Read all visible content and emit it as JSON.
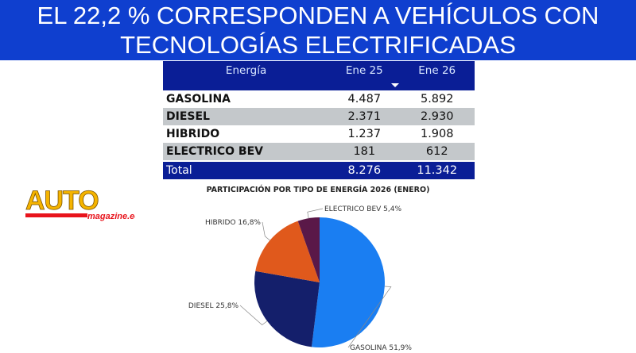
{
  "banner": {
    "line1": "EL 22,2 % CORRESPONDEN A VEHÍCULOS CON",
    "line2": "TECNOLOGÍAS ELECTRIFICADAS"
  },
  "table": {
    "headers": [
      "Energía",
      "Ene 25",
      "Ene 26"
    ],
    "rows": [
      {
        "label": "GASOLINA",
        "ene25": "4.487",
        "ene26": "5.892"
      },
      {
        "label": "DIESEL",
        "ene25": "2.371",
        "ene26": "2.930"
      },
      {
        "label": "HIBRIDO",
        "ene25": "1.237",
        "ene26": "1.908"
      },
      {
        "label": "ELECTRICO BEV",
        "ene25": "181",
        "ene26": "612"
      }
    ],
    "total": {
      "label": "Total",
      "ene25": "8.276",
      "ene26": "11.342"
    }
  },
  "logo": {
    "text": "AUTO",
    "sub": "magazine.ec"
  },
  "chart_data": {
    "type": "pie",
    "title": "PARTICIPACIÓN POR TIPO DE ENERGÍA 2026 (ENERO)",
    "categories": [
      "GASOLINA",
      "DIESEL",
      "HIBRIDO",
      "ELECTRICO BEV"
    ],
    "values": [
      51.9,
      25.8,
      16.8,
      5.4
    ],
    "labels": [
      "GASOLINA 51,9%",
      "DIESEL 25,8%",
      "HIBRIDO 16,8%",
      "ELECTRICO BEV 5,4%"
    ],
    "colors": [
      "#1a7ef2",
      "#141f6b",
      "#e0591c",
      "#5a1848"
    ]
  }
}
